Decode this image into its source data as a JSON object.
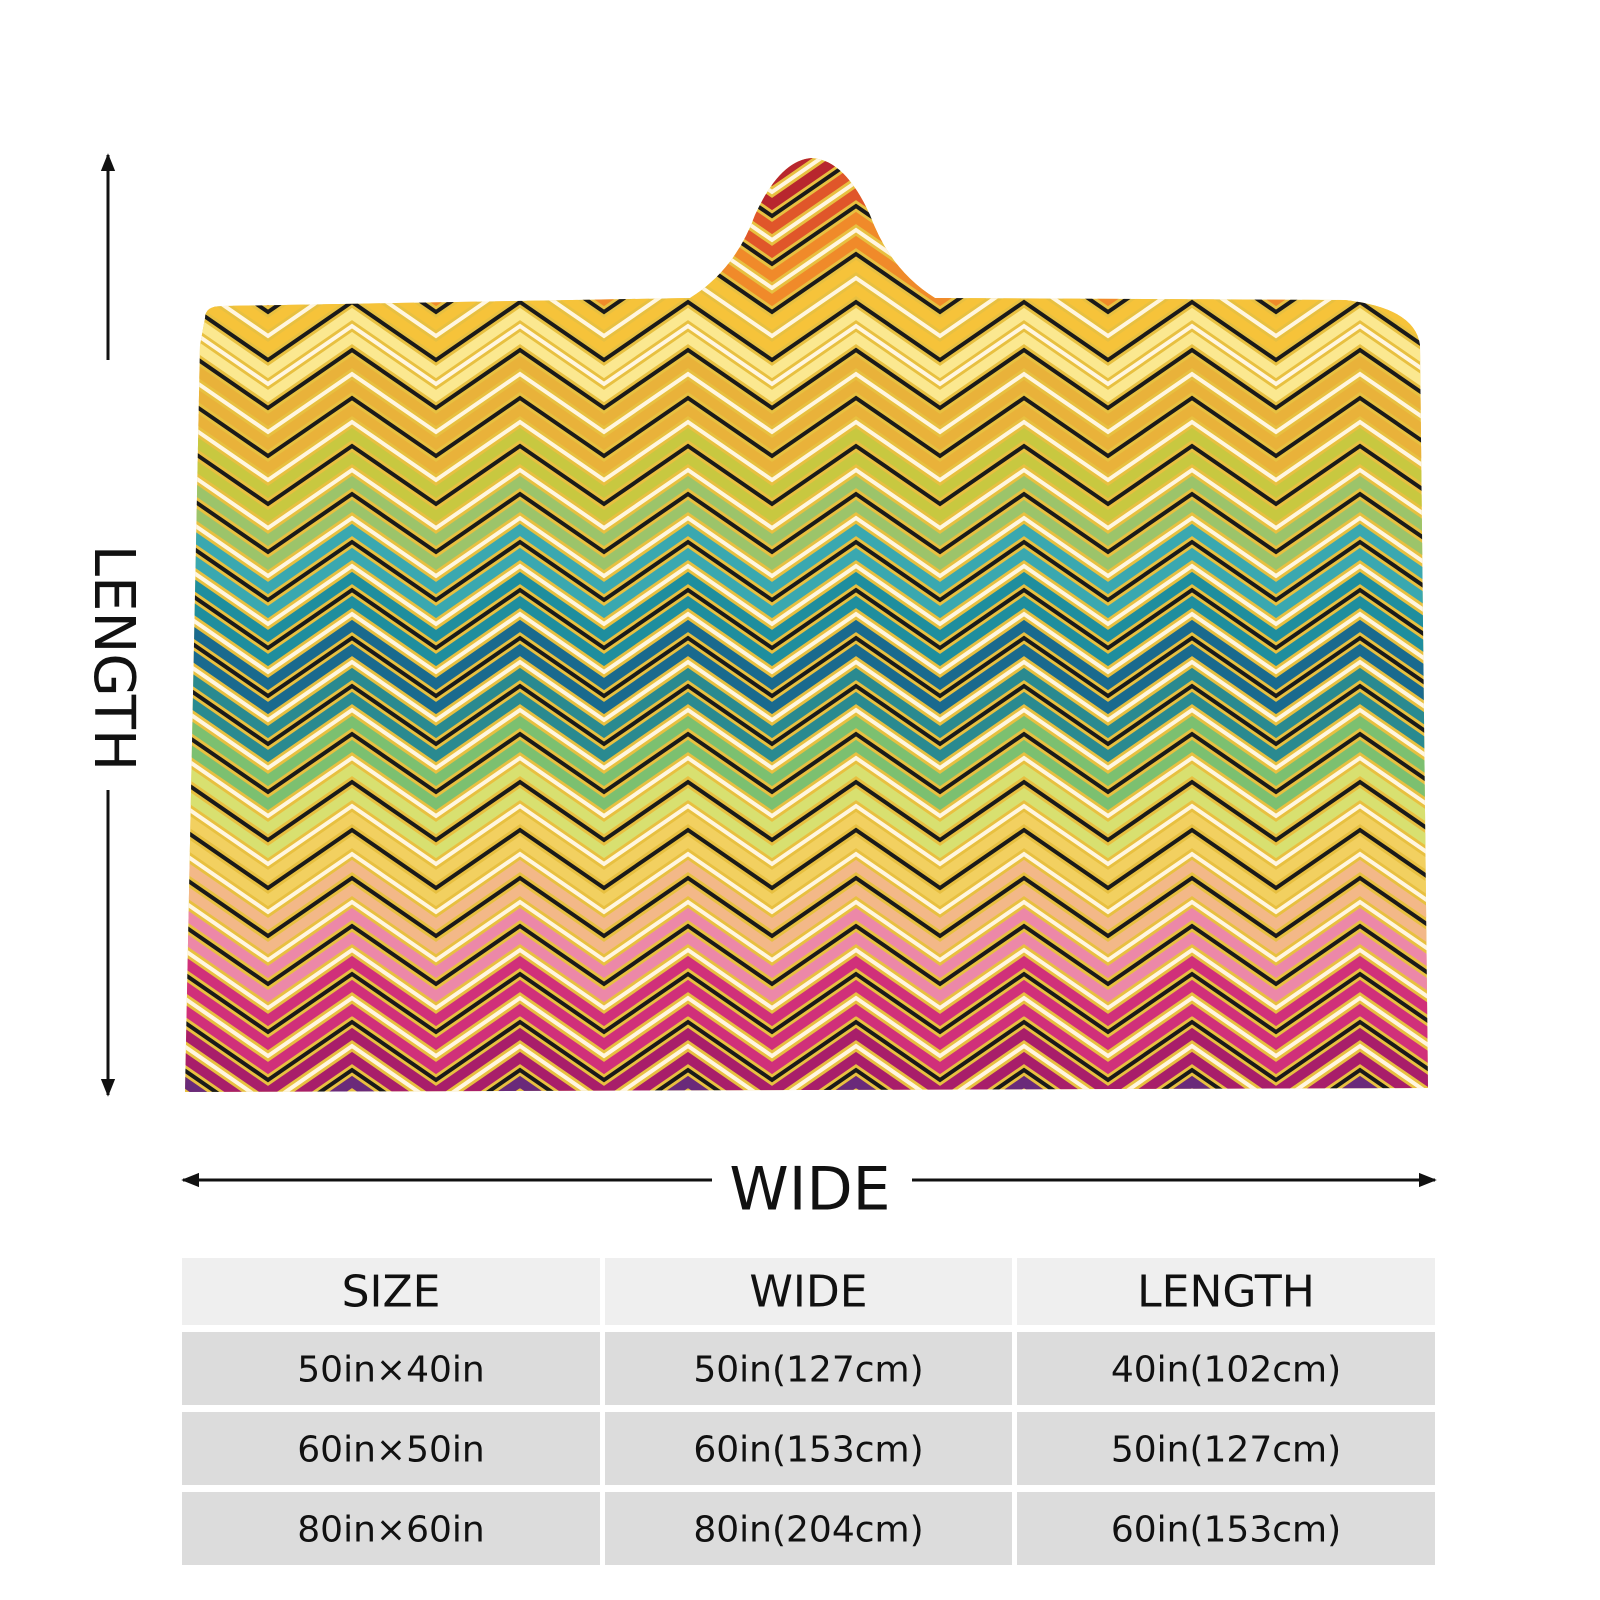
{
  "dimension_labels": {
    "length": "LENGTH",
    "wide": "WIDE"
  },
  "table": {
    "header": [
      "SIZE",
      "WIDE",
      "LENGTH"
    ],
    "rows": [
      [
        "50in×40in",
        "50in(127cm)",
        "40in(102cm)"
      ],
      [
        "60in×50in",
        "60in(153cm)",
        "50in(127cm)"
      ],
      [
        "80in×60in",
        "80in(204cm)",
        "60in(153cm)"
      ]
    ]
  }
}
